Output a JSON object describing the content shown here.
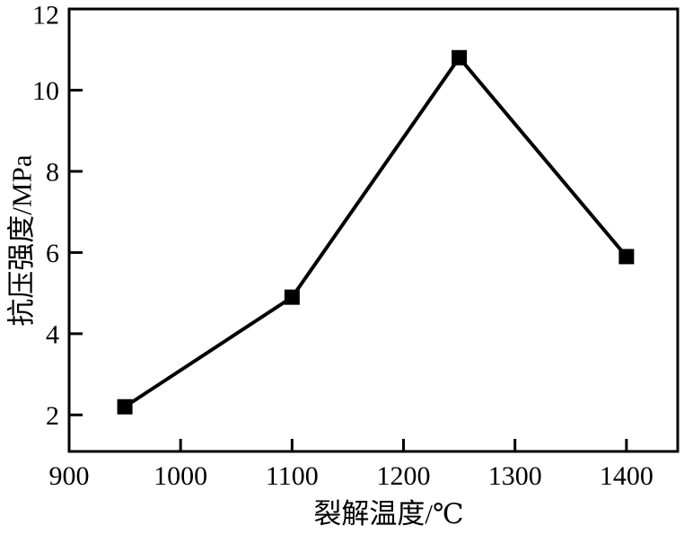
{
  "figure": {
    "background": "#ffffff",
    "ink_color": "#000000"
  },
  "chart_data": {
    "type": "line",
    "title": "",
    "xlabel": "裂解温度/℃",
    "ylabel": "抗压强度/MPa",
    "x": [
      950,
      1100,
      1250,
      1400
    ],
    "y": [
      2.2,
      4.9,
      10.8,
      5.9
    ],
    "x_ticks": [
      900,
      1000,
      1100,
      1200,
      1300,
      1400
    ],
    "y_ticks": [
      2,
      4,
      6,
      8,
      10,
      12
    ],
    "xlim": [
      900,
      1446
    ],
    "ylim": [
      1.1,
      12
    ],
    "grid": false,
    "legend": "none",
    "marker": "square",
    "marker_size_px": 17,
    "line_color": "#000000",
    "marker_color": "#000000"
  }
}
